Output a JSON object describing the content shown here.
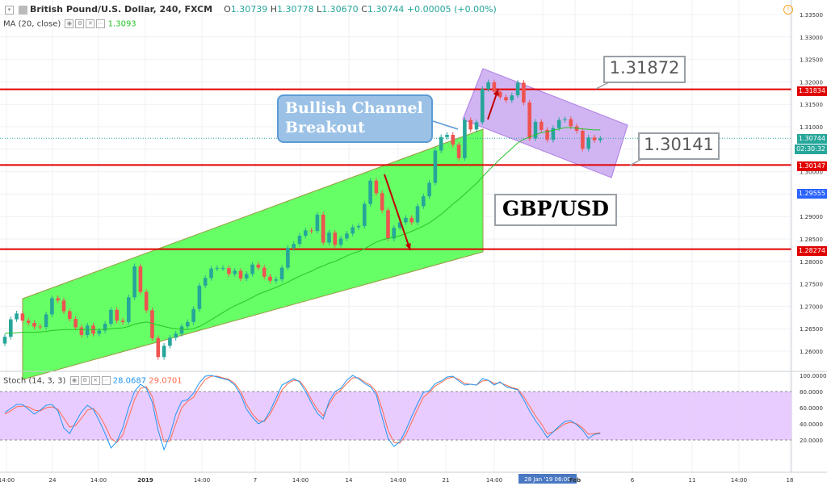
{
  "header": {
    "symbol": "British Pound/U.S. Dollar, 240, FXCM",
    "o_label": "O",
    "o": "1.30739",
    "h_label": "H",
    "h": "1.30778",
    "l_label": "L",
    "l": "1.30670",
    "c_label": "C",
    "c": "1.30744",
    "change": "+0.00005 (+0.00%)"
  },
  "ma": {
    "label": "MA (20, close)",
    "value": "1.3093"
  },
  "stoch": {
    "label": "Stoch (14, 3, 3)",
    "k": "28.0687",
    "d": "29.0701"
  },
  "annotations": {
    "bullish": "Bullish Channel Breakout",
    "bullish_line1": "Bullish Channel",
    "bullish_line2": "Breakout",
    "level_high": "1.31872",
    "level_low": "1.30141",
    "pair": "GBP/USD"
  },
  "price_axis": {
    "ticks": [
      "1.33500",
      "1.33000",
      "1.32500",
      "1.32000",
      "1.31500",
      "1.31000",
      "1.30500",
      "1.30000",
      "1.29500",
      "1.29000",
      "1.28500",
      "1.28000",
      "1.27500",
      "1.27000",
      "1.26500",
      "1.26000"
    ],
    "tags": {
      "r1": "1.31834",
      "current": "1.30744",
      "countdown": "02:30:32",
      "r2": "1.30147",
      "blue": "1.29555",
      "r3": "1.28274"
    }
  },
  "stoch_axis": {
    "ticks": [
      "100.0000",
      "80.0000",
      "60.0000",
      "40.0000",
      "20.0000"
    ]
  },
  "time_axis": {
    "labels": [
      "14:00",
      "24",
      "14:00",
      "2019",
      "14:00",
      "7",
      "14:00",
      "14",
      "14:00",
      "21",
      "14:00",
      "28 Jan '19  06:00",
      "Feb",
      "6",
      "11",
      "14:00",
      "18"
    ],
    "highlight": "28 Jan '19  06:00"
  },
  "colors": {
    "up": "#26a69a",
    "down": "#ef5350",
    "support": "#e00000",
    "channel_fill": "#66ff66",
    "flag_fill": "#c9a8f0",
    "stoch_band": "#e7c6ff",
    "ma": "#27c427",
    "stoch_k": "#2196f3",
    "stoch_d": "#ff6a4d"
  },
  "chart_data": {
    "type": "candlestick",
    "instrument": "GBP/USD",
    "timeframe": "240",
    "price_ylim": [
      1.2575,
      1.3375
    ],
    "horizontal_levels": [
      1.31834,
      1.30147,
      1.28274
    ],
    "current_price": 1.30744,
    "blue_label_price": 1.29555,
    "candle_closes": [
      1.2632,
      1.2671,
      1.2684,
      1.2668,
      1.2663,
      1.2655,
      1.2654,
      1.2682,
      1.2718,
      1.2713,
      1.2689,
      1.2672,
      1.2653,
      1.2636,
      1.2657,
      1.2639,
      1.2646,
      1.2661,
      1.2692,
      1.2668,
      1.2665,
      1.272,
      1.2789,
      1.2732,
      1.2691,
      1.2629,
      1.2587,
      1.2612,
      1.263,
      1.2639,
      1.2655,
      1.2665,
      1.2694,
      1.2746,
      1.2763,
      1.2784,
      1.2785,
      1.2785,
      1.2772,
      1.2779,
      1.2762,
      1.2772,
      1.2793,
      1.2786,
      1.2766,
      1.2757,
      1.276,
      1.2786,
      1.283,
      1.2839,
      1.2857,
      1.2869,
      1.2868,
      1.2904,
      1.2842,
      1.2864,
      1.2837,
      1.2851,
      1.2862,
      1.2876,
      1.2879,
      1.2928,
      1.298,
      1.2952,
      1.2914,
      1.2851,
      1.2875,
      1.2887,
      1.2897,
      1.2887,
      1.2923,
      1.2945,
      1.2975,
      1.3047,
      1.3077,
      1.3082,
      1.306,
      1.303,
      1.3115,
      1.3094,
      1.311,
      1.3184,
      1.3199,
      1.3178,
      1.3166,
      1.3159,
      1.317,
      1.3198,
      1.3154,
      1.3074,
      1.3111,
      1.3093,
      1.3071,
      1.3097,
      1.3115,
      1.3117,
      1.3101,
      1.3091,
      1.3051,
      1.3076,
      1.307,
      1.3074
    ],
    "ma_values_approx": [
      1.264,
      1.264,
      1.2641,
      1.2642,
      1.2642,
      1.2642,
      1.2643,
      1.2644,
      1.2646,
      1.2647,
      1.2648,
      1.2648,
      1.2648,
      1.2648,
      1.2648,
      1.2648,
      1.2648,
      1.2649,
      1.265,
      1.2651,
      1.2652,
      1.2655,
      1.266,
      1.2663,
      1.2665,
      1.2662,
      1.2658,
      1.2655,
      1.2652,
      1.265,
      1.2649,
      1.2648,
      1.265,
      1.2655,
      1.2662,
      1.267,
      1.2678,
      1.2686,
      1.2694,
      1.2701,
      1.2707,
      1.2713,
      1.272,
      1.2727,
      1.2732,
      1.2737,
      1.2742,
      1.2748,
      1.2754,
      1.2761,
      1.2767,
      1.2773,
      1.2778,
      1.2785,
      1.279,
      1.2796,
      1.28,
      1.2806,
      1.2812,
      1.2818,
      1.2822,
      1.2828,
      1.2836,
      1.2843,
      1.2848,
      1.2851,
      1.2854,
      1.2857,
      1.2862,
      1.2867,
      1.2873,
      1.2879,
      1.2886,
      1.2895,
      1.2905,
      1.2916,
      1.2928,
      1.2938,
      1.295,
      1.2962,
      1.2974,
      1.2988,
      1.3002,
      1.3015,
      1.3028,
      1.304,
      1.3052,
      1.3064,
      1.3072,
      1.3077,
      1.3082,
      1.3087,
      1.3089,
      1.3092,
      1.3095,
      1.3098,
      1.3098,
      1.3097,
      1.3095,
      1.3094,
      1.3093,
      1.3093
    ],
    "stoch_k": [
      54,
      59,
      64,
      64,
      58,
      52,
      57,
      63,
      64,
      56,
      35,
      28,
      42,
      55,
      63,
      58,
      44,
      28,
      10,
      18,
      35,
      60,
      80,
      89,
      84,
      67,
      32,
      8,
      26,
      52,
      68,
      70,
      78,
      91,
      99,
      100,
      98,
      96,
      94,
      88,
      76,
      58,
      48,
      40,
      44,
      56,
      72,
      88,
      92,
      96,
      92,
      80,
      66,
      53,
      46,
      68,
      80,
      84,
      94,
      100,
      96,
      90,
      86,
      76,
      48,
      22,
      12,
      18,
      32,
      49,
      65,
      79,
      81,
      90,
      93,
      98,
      99,
      93,
      88,
      89,
      88,
      96,
      94,
      88,
      92,
      86,
      84,
      82,
      70,
      56,
      44,
      34,
      23,
      30,
      37,
      43,
      44,
      39,
      32,
      22,
      27,
      28
    ],
    "stoch_d": [
      52,
      56,
      61,
      62,
      61,
      57,
      56,
      60,
      61,
      58,
      47,
      36,
      38,
      47,
      57,
      59,
      51,
      38,
      22,
      17,
      26,
      48,
      70,
      84,
      86,
      74,
      44,
      18,
      19,
      40,
      60,
      68,
      73,
      85,
      95,
      99,
      99,
      97,
      95,
      90,
      80,
      64,
      52,
      44,
      43,
      52,
      66,
      82,
      90,
      94,
      93,
      84,
      70,
      58,
      50,
      64,
      76,
      82,
      90,
      97,
      97,
      92,
      88,
      80,
      58,
      32,
      17,
      16,
      26,
      42,
      58,
      73,
      79,
      87,
      91,
      96,
      98,
      95,
      90,
      89,
      88,
      93,
      94,
      90,
      91,
      88,
      85,
      83,
      74,
      62,
      50,
      40,
      28,
      30,
      35,
      40,
      42,
      40,
      35,
      27,
      28,
      29
    ],
    "stoch_ylim": [
      0,
      100
    ],
    "stoch_bands": [
      20,
      80
    ]
  }
}
